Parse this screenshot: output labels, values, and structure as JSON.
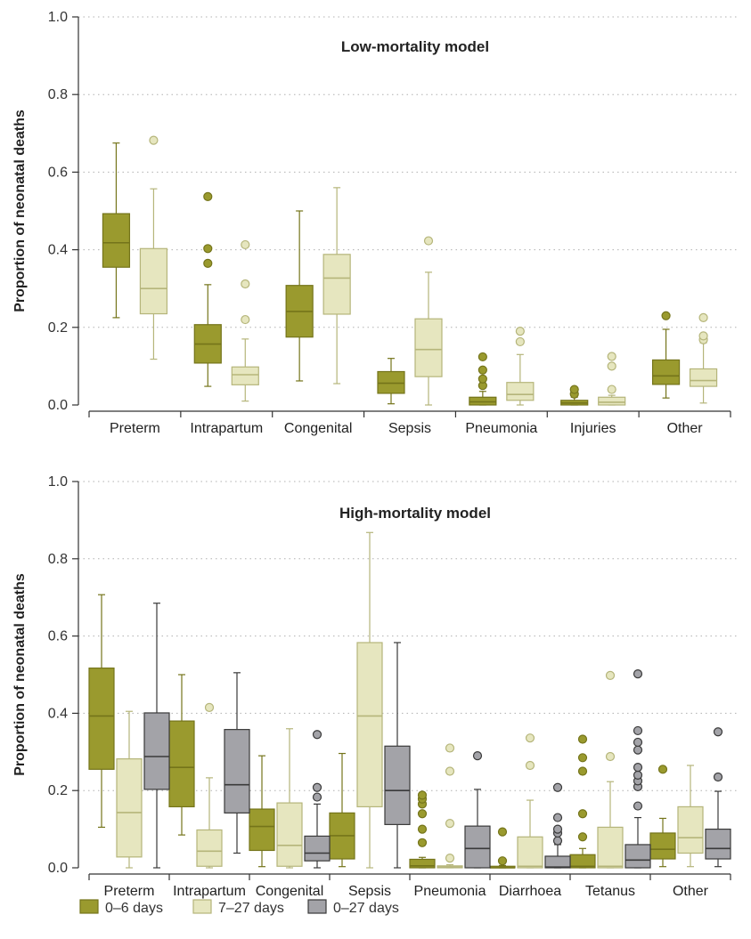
{
  "chart_data": [
    {
      "type": "box",
      "title": "Low-mortality model",
      "ylabel": "Proportion of neonatal deaths",
      "ylim": [
        0,
        1.0
      ],
      "yticks": [
        "0.0",
        "0.2",
        "0.4",
        "0.6",
        "0.8",
        "1.0"
      ],
      "grid": "horizontal dotted",
      "categories": [
        "Preterm",
        "Intrapartum",
        "Congenital",
        "Sepsis",
        "Pneumonia",
        "Injuries",
        "Other"
      ],
      "series": [
        {
          "name": "0–6 days",
          "boxes": [
            {
              "min": 0.225,
              "q1": 0.355,
              "median": 0.418,
              "q3": 0.493,
              "max": 0.675,
              "outliers": []
            },
            {
              "min": 0.048,
              "q1": 0.108,
              "median": 0.157,
              "q3": 0.207,
              "max": 0.31,
              "outliers": [
                0.365,
                0.403,
                0.537
              ]
            },
            {
              "min": 0.062,
              "q1": 0.175,
              "median": 0.241,
              "q3": 0.308,
              "max": 0.5,
              "outliers": []
            },
            {
              "min": 0.003,
              "q1": 0.03,
              "median": 0.056,
              "q3": 0.086,
              "max": 0.12,
              "outliers": []
            },
            {
              "min": 0.0,
              "q1": 0.0,
              "median": 0.008,
              "q3": 0.02,
              "max": 0.035,
              "outliers": [
                0.05,
                0.067,
                0.09,
                0.124
              ]
            },
            {
              "min": 0.0,
              "q1": 0.0,
              "median": 0.005,
              "q3": 0.012,
              "max": 0.02,
              "outliers": [
                0.028,
                0.04
              ]
            },
            {
              "min": 0.018,
              "q1": 0.053,
              "median": 0.075,
              "q3": 0.116,
              "max": 0.195,
              "outliers": [
                0.23
              ]
            }
          ]
        },
        {
          "name": "7–27 days",
          "boxes": [
            {
              "min": 0.118,
              "q1": 0.235,
              "median": 0.3,
              "q3": 0.403,
              "max": 0.557,
              "outliers": [
                0.682
              ]
            },
            {
              "min": 0.01,
              "q1": 0.052,
              "median": 0.078,
              "q3": 0.098,
              "max": 0.17,
              "outliers": [
                0.22,
                0.312,
                0.413
              ]
            },
            {
              "min": 0.055,
              "q1": 0.234,
              "median": 0.327,
              "q3": 0.388,
              "max": 0.56,
              "outliers": []
            },
            {
              "min": 0.0,
              "q1": 0.073,
              "median": 0.143,
              "q3": 0.222,
              "max": 0.342,
              "outliers": [
                0.423
              ]
            },
            {
              "min": 0.0,
              "q1": 0.012,
              "median": 0.027,
              "q3": 0.058,
              "max": 0.13,
              "outliers": [
                0.163,
                0.19
              ]
            },
            {
              "min": 0.0,
              "q1": 0.0,
              "median": 0.007,
              "q3": 0.02,
              "max": 0.025,
              "outliers": [
                0.04,
                0.1,
                0.125
              ]
            },
            {
              "min": 0.005,
              "q1": 0.048,
              "median": 0.063,
              "q3": 0.093,
              "max": 0.16,
              "outliers": [
                0.168,
                0.178,
                0.225
              ]
            }
          ]
        }
      ]
    },
    {
      "type": "box",
      "title": "High-mortality model",
      "ylabel": "Proportion of neonatal deaths",
      "ylim": [
        0,
        1.0
      ],
      "yticks": [
        "0.0",
        "0.2",
        "0.4",
        "0.6",
        "0.8",
        "1.0"
      ],
      "grid": "horizontal dotted",
      "categories": [
        "Preterm",
        "Intrapartum",
        "Congenital",
        "Sepsis",
        "Pneumonia",
        "Diarrhoea",
        "Tetanus",
        "Other"
      ],
      "series": [
        {
          "name": "0–6 days",
          "boxes": [
            {
              "min": 0.105,
              "q1": 0.255,
              "median": 0.393,
              "q3": 0.517,
              "max": 0.707,
              "outliers": []
            },
            {
              "min": 0.085,
              "q1": 0.158,
              "median": 0.26,
              "q3": 0.38,
              "max": 0.5,
              "outliers": []
            },
            {
              "min": 0.003,
              "q1": 0.045,
              "median": 0.107,
              "q3": 0.152,
              "max": 0.29,
              "outliers": []
            },
            {
              "min": 0.003,
              "q1": 0.023,
              "median": 0.083,
              "q3": 0.142,
              "max": 0.296,
              "outliers": []
            },
            {
              "min": 0.0,
              "q1": 0.0,
              "median": 0.005,
              "q3": 0.022,
              "max": 0.027,
              "outliers": [
                0.065,
                0.1,
                0.14,
                0.165,
                0.178,
                0.188
              ]
            },
            {
              "min": 0.0,
              "q1": 0.0,
              "median": 0.0,
              "q3": 0.004,
              "max": 0.006,
              "outliers": [
                0.018,
                0.093
              ]
            },
            {
              "min": 0.0,
              "q1": 0.0,
              "median": 0.004,
              "q3": 0.034,
              "max": 0.05,
              "outliers": [
                0.08,
                0.14,
                0.25,
                0.285,
                0.333
              ]
            },
            {
              "min": 0.003,
              "q1": 0.023,
              "median": 0.048,
              "q3": 0.09,
              "max": 0.128,
              "outliers": [
                0.255
              ]
            }
          ]
        },
        {
          "name": "7–27 days",
          "boxes": [
            {
              "min": 0.0,
              "q1": 0.028,
              "median": 0.143,
              "q3": 0.282,
              "max": 0.405,
              "outliers": []
            },
            {
              "min": 0.0,
              "q1": 0.004,
              "median": 0.043,
              "q3": 0.098,
              "max": 0.233,
              "outliers": [
                0.415
              ]
            },
            {
              "min": 0.0,
              "q1": 0.004,
              "median": 0.058,
              "q3": 0.168,
              "max": 0.36,
              "outliers": []
            },
            {
              "min": 0.0,
              "q1": 0.158,
              "median": 0.393,
              "q3": 0.583,
              "max": 0.868,
              "outliers": []
            },
            {
              "min": 0.0,
              "q1": 0.0,
              "median": 0.002,
              "q3": 0.005,
              "max": 0.008,
              "outliers": [
                0.025,
                0.115,
                0.25,
                0.31
              ]
            },
            {
              "min": 0.0,
              "q1": 0.0,
              "median": 0.004,
              "q3": 0.08,
              "max": 0.175,
              "outliers": [
                0.265,
                0.336
              ]
            },
            {
              "min": 0.0,
              "q1": 0.0,
              "median": 0.004,
              "q3": 0.105,
              "max": 0.223,
              "outliers": [
                0.288,
                0.498
              ]
            },
            {
              "min": 0.003,
              "q1": 0.038,
              "median": 0.078,
              "q3": 0.158,
              "max": 0.265,
              "outliers": []
            }
          ]
        },
        {
          "name": "0–27 days",
          "boxes": [
            {
              "min": 0.0,
              "q1": 0.203,
              "median": 0.288,
              "q3": 0.401,
              "max": 0.685,
              "outliers": []
            },
            {
              "min": 0.038,
              "q1": 0.142,
              "median": 0.215,
              "q3": 0.358,
              "max": 0.505,
              "outliers": []
            },
            {
              "min": 0.0,
              "q1": 0.018,
              "median": 0.038,
              "q3": 0.082,
              "max": 0.165,
              "outliers": [
                0.183,
                0.208,
                0.345
              ]
            },
            {
              "min": 0.0,
              "q1": 0.112,
              "median": 0.2,
              "q3": 0.315,
              "max": 0.583,
              "outliers": []
            },
            {
              "min": 0.0,
              "q1": 0.0,
              "median": 0.05,
              "q3": 0.108,
              "max": 0.203,
              "outliers": [
                0.29
              ]
            },
            {
              "min": 0.0,
              "q1": 0.0,
              "median": 0.002,
              "q3": 0.03,
              "max": 0.06,
              "outliers": [
                0.07,
                0.09,
                0.1,
                0.13,
                0.208
              ]
            },
            {
              "min": 0.0,
              "q1": 0.0,
              "median": 0.02,
              "q3": 0.06,
              "max": 0.13,
              "outliers": [
                0.16,
                0.21,
                0.225,
                0.24,
                0.26,
                0.305,
                0.325,
                0.355,
                0.502
              ]
            },
            {
              "min": 0.003,
              "q1": 0.023,
              "median": 0.05,
              "q3": 0.1,
              "max": 0.198,
              "outliers": [
                0.235,
                0.352
              ]
            }
          ]
        }
      ]
    }
  ],
  "legend": {
    "items": [
      {
        "label": "0–6 days",
        "color": "#9a9a2e",
        "edge": "#74741a"
      },
      {
        "label": "7–27 days",
        "color": "#e6e6bf",
        "edge": "#b5b57a"
      },
      {
        "label": "0–27 days",
        "color": "#a3a3a8",
        "edge": "#3a3a3a"
      }
    ]
  }
}
